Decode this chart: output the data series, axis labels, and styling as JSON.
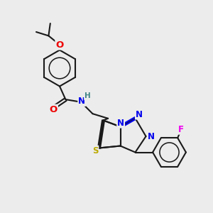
{
  "background_color": "#ececec",
  "bond_color": "#1a1a1a",
  "N_color": "#0000ee",
  "O_color": "#ee0000",
  "S_color": "#bbaa00",
  "F_color": "#ee00ee",
  "H_color": "#448888",
  "bond_width": 1.5,
  "figsize": [
    3.0,
    3.0
  ],
  "dpi": 100,
  "font_size": 8.5,
  "xlim": [
    0,
    10
  ],
  "ylim": [
    0,
    10
  ]
}
